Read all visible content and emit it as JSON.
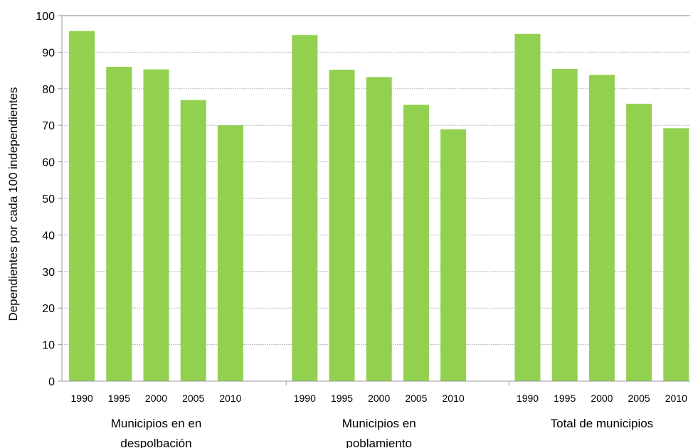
{
  "chart_data": {
    "type": "bar",
    "ylabel": "Dependientes por cada 100 independientes",
    "ylim": [
      0,
      100
    ],
    "yticks": [
      0,
      10,
      20,
      30,
      40,
      50,
      60,
      70,
      80,
      90,
      100
    ],
    "grid": true,
    "bar_color": "#92d050",
    "groups": [
      {
        "label_lines": [
          "Municipios en en",
          "despolbación"
        ],
        "categories": [
          "1990",
          "1995",
          "2000",
          "2005",
          "2010"
        ],
        "values": [
          95.8,
          86.0,
          85.3,
          76.9,
          70.0
        ]
      },
      {
        "label_lines": [
          "Municipios  en",
          "poblamiento"
        ],
        "categories": [
          "1990",
          "1995",
          "2000",
          "2005",
          "2010"
        ],
        "values": [
          94.7,
          85.2,
          83.2,
          75.6,
          68.9
        ]
      },
      {
        "label_lines": [
          "Total de municipios"
        ],
        "categories": [
          "1990",
          "1995",
          "2000",
          "2005",
          "2010"
        ],
        "values": [
          95.0,
          85.4,
          83.8,
          75.9,
          69.2
        ]
      }
    ]
  }
}
